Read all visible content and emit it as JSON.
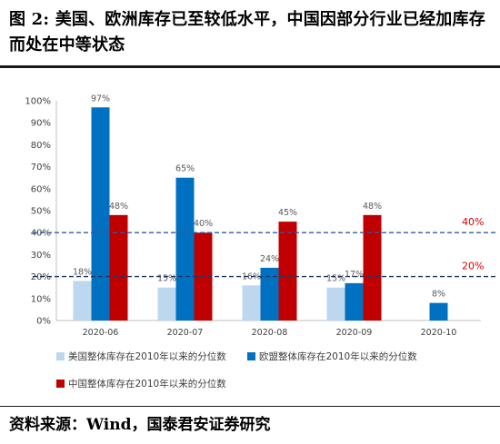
{
  "title": "图 2: 美国、欧洲库存已至较低水平，中国因部分行业已经加库存而处在中等状态",
  "source": "资料来源：Wind，国泰君安证券研究",
  "chart_data": {
    "type": "bar",
    "categories": [
      "2020-06",
      "2020-07",
      "2020-08",
      "2020-09",
      "2020-10"
    ],
    "series": [
      {
        "name": "美国整体库存在2010年以来的分位数",
        "color": "#bdd7ee",
        "values": [
          18,
          15,
          16,
          15,
          null
        ],
        "labels": [
          "18%",
          "15%",
          "16%",
          "15%",
          ""
        ]
      },
      {
        "name": "欧盟整体库存在2010年以来的分位数",
        "color": "#0070c0",
        "values": [
          97,
          65,
          24,
          17,
          8
        ],
        "labels": [
          "97%",
          "65%",
          "24%",
          "17%",
          "8%"
        ]
      },
      {
        "name": "中国整体库存在2010年以来的分位数",
        "color": "#c00000",
        "values": [
          48,
          40,
          45,
          48,
          null
        ],
        "labels": [
          "48%",
          "40%",
          "45%",
          "48%",
          ""
        ]
      }
    ],
    "ylim": [
      0,
      100
    ],
    "yticks": [
      0,
      10,
      20,
      30,
      40,
      50,
      60,
      70,
      80,
      90,
      100
    ],
    "ytick_labels": [
      "0%",
      "10%",
      "20%",
      "30%",
      "40%",
      "50%",
      "60%",
      "70%",
      "80%",
      "90%",
      "100%"
    ],
    "reference_lines": [
      {
        "value": 40,
        "label": "40%",
        "line_color": "#2e5aa8",
        "label_color": "#e00000"
      },
      {
        "value": 20,
        "label": "20%",
        "line_color": "#1f3864",
        "label_color": "#e00000"
      }
    ],
    "grid": false,
    "legend_position": "bottom"
  }
}
